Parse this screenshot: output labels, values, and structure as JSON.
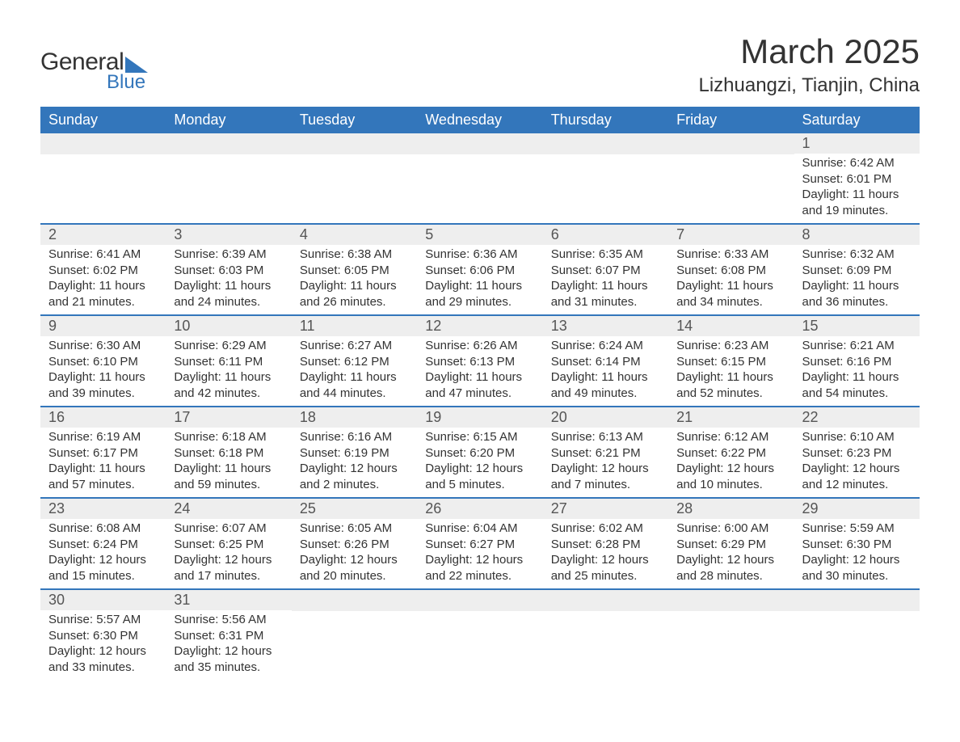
{
  "brand": {
    "general": "General",
    "blue": "Blue"
  },
  "title": "March 2025",
  "location": "Lizhuangzi, Tianjin, China",
  "colors": {
    "header_bg": "#3376bb",
    "header_text": "#ffffff",
    "daynum_bg": "#eeeeee",
    "border": "#3376bb",
    "text": "#333333"
  },
  "weekdays": [
    "Sunday",
    "Monday",
    "Tuesday",
    "Wednesday",
    "Thursday",
    "Friday",
    "Saturday"
  ],
  "weeks": [
    [
      null,
      null,
      null,
      null,
      null,
      null,
      {
        "n": "1",
        "sunrise": "Sunrise: 6:42 AM",
        "sunset": "Sunset: 6:01 PM",
        "daylight": "Daylight: 11 hours and 19 minutes."
      }
    ],
    [
      {
        "n": "2",
        "sunrise": "Sunrise: 6:41 AM",
        "sunset": "Sunset: 6:02 PM",
        "daylight": "Daylight: 11 hours and 21 minutes."
      },
      {
        "n": "3",
        "sunrise": "Sunrise: 6:39 AM",
        "sunset": "Sunset: 6:03 PM",
        "daylight": "Daylight: 11 hours and 24 minutes."
      },
      {
        "n": "4",
        "sunrise": "Sunrise: 6:38 AM",
        "sunset": "Sunset: 6:05 PM",
        "daylight": "Daylight: 11 hours and 26 minutes."
      },
      {
        "n": "5",
        "sunrise": "Sunrise: 6:36 AM",
        "sunset": "Sunset: 6:06 PM",
        "daylight": "Daylight: 11 hours and 29 minutes."
      },
      {
        "n": "6",
        "sunrise": "Sunrise: 6:35 AM",
        "sunset": "Sunset: 6:07 PM",
        "daylight": "Daylight: 11 hours and 31 minutes."
      },
      {
        "n": "7",
        "sunrise": "Sunrise: 6:33 AM",
        "sunset": "Sunset: 6:08 PM",
        "daylight": "Daylight: 11 hours and 34 minutes."
      },
      {
        "n": "8",
        "sunrise": "Sunrise: 6:32 AM",
        "sunset": "Sunset: 6:09 PM",
        "daylight": "Daylight: 11 hours and 36 minutes."
      }
    ],
    [
      {
        "n": "9",
        "sunrise": "Sunrise: 6:30 AM",
        "sunset": "Sunset: 6:10 PM",
        "daylight": "Daylight: 11 hours and 39 minutes."
      },
      {
        "n": "10",
        "sunrise": "Sunrise: 6:29 AM",
        "sunset": "Sunset: 6:11 PM",
        "daylight": "Daylight: 11 hours and 42 minutes."
      },
      {
        "n": "11",
        "sunrise": "Sunrise: 6:27 AM",
        "sunset": "Sunset: 6:12 PM",
        "daylight": "Daylight: 11 hours and 44 minutes."
      },
      {
        "n": "12",
        "sunrise": "Sunrise: 6:26 AM",
        "sunset": "Sunset: 6:13 PM",
        "daylight": "Daylight: 11 hours and 47 minutes."
      },
      {
        "n": "13",
        "sunrise": "Sunrise: 6:24 AM",
        "sunset": "Sunset: 6:14 PM",
        "daylight": "Daylight: 11 hours and 49 minutes."
      },
      {
        "n": "14",
        "sunrise": "Sunrise: 6:23 AM",
        "sunset": "Sunset: 6:15 PM",
        "daylight": "Daylight: 11 hours and 52 minutes."
      },
      {
        "n": "15",
        "sunrise": "Sunrise: 6:21 AM",
        "sunset": "Sunset: 6:16 PM",
        "daylight": "Daylight: 11 hours and 54 minutes."
      }
    ],
    [
      {
        "n": "16",
        "sunrise": "Sunrise: 6:19 AM",
        "sunset": "Sunset: 6:17 PM",
        "daylight": "Daylight: 11 hours and 57 minutes."
      },
      {
        "n": "17",
        "sunrise": "Sunrise: 6:18 AM",
        "sunset": "Sunset: 6:18 PM",
        "daylight": "Daylight: 11 hours and 59 minutes."
      },
      {
        "n": "18",
        "sunrise": "Sunrise: 6:16 AM",
        "sunset": "Sunset: 6:19 PM",
        "daylight": "Daylight: 12 hours and 2 minutes."
      },
      {
        "n": "19",
        "sunrise": "Sunrise: 6:15 AM",
        "sunset": "Sunset: 6:20 PM",
        "daylight": "Daylight: 12 hours and 5 minutes."
      },
      {
        "n": "20",
        "sunrise": "Sunrise: 6:13 AM",
        "sunset": "Sunset: 6:21 PM",
        "daylight": "Daylight: 12 hours and 7 minutes."
      },
      {
        "n": "21",
        "sunrise": "Sunrise: 6:12 AM",
        "sunset": "Sunset: 6:22 PM",
        "daylight": "Daylight: 12 hours and 10 minutes."
      },
      {
        "n": "22",
        "sunrise": "Sunrise: 6:10 AM",
        "sunset": "Sunset: 6:23 PM",
        "daylight": "Daylight: 12 hours and 12 minutes."
      }
    ],
    [
      {
        "n": "23",
        "sunrise": "Sunrise: 6:08 AM",
        "sunset": "Sunset: 6:24 PM",
        "daylight": "Daylight: 12 hours and 15 minutes."
      },
      {
        "n": "24",
        "sunrise": "Sunrise: 6:07 AM",
        "sunset": "Sunset: 6:25 PM",
        "daylight": "Daylight: 12 hours and 17 minutes."
      },
      {
        "n": "25",
        "sunrise": "Sunrise: 6:05 AM",
        "sunset": "Sunset: 6:26 PM",
        "daylight": "Daylight: 12 hours and 20 minutes."
      },
      {
        "n": "26",
        "sunrise": "Sunrise: 6:04 AM",
        "sunset": "Sunset: 6:27 PM",
        "daylight": "Daylight: 12 hours and 22 minutes."
      },
      {
        "n": "27",
        "sunrise": "Sunrise: 6:02 AM",
        "sunset": "Sunset: 6:28 PM",
        "daylight": "Daylight: 12 hours and 25 minutes."
      },
      {
        "n": "28",
        "sunrise": "Sunrise: 6:00 AM",
        "sunset": "Sunset: 6:29 PM",
        "daylight": "Daylight: 12 hours and 28 minutes."
      },
      {
        "n": "29",
        "sunrise": "Sunrise: 5:59 AM",
        "sunset": "Sunset: 6:30 PM",
        "daylight": "Daylight: 12 hours and 30 minutes."
      }
    ],
    [
      {
        "n": "30",
        "sunrise": "Sunrise: 5:57 AM",
        "sunset": "Sunset: 6:30 PM",
        "daylight": "Daylight: 12 hours and 33 minutes."
      },
      {
        "n": "31",
        "sunrise": "Sunrise: 5:56 AM",
        "sunset": "Sunset: 6:31 PM",
        "daylight": "Daylight: 12 hours and 35 minutes."
      },
      null,
      null,
      null,
      null,
      null
    ]
  ]
}
